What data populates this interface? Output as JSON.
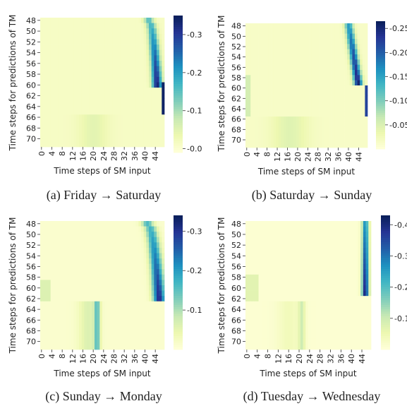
{
  "chart_data": [
    {
      "type": "heatmap",
      "caption": "(a) Friday → Saturday",
      "xlabel": "Time steps of SM input",
      "ylabel": "Time steps for predictions of TM",
      "x_ticks": [
        "0",
        "4",
        "8",
        "12",
        "16",
        "20",
        "24",
        "28",
        "32",
        "36",
        "40",
        "44"
      ],
      "y_ticks": [
        "48",
        "50",
        "52",
        "54",
        "56",
        "58",
        "60",
        "62",
        "64",
        "66",
        "68",
        "70"
      ],
      "x_range": [
        0,
        47
      ],
      "y_range": [
        48,
        71
      ],
      "colorbar": {
        "ticks": [
          "0.0",
          "0.1",
          "0.2",
          "0.3"
        ],
        "min": -0.01,
        "max": 0.35
      },
      "colormap": "YlGnBu"
    },
    {
      "type": "heatmap",
      "caption": "(b) Saturday → Sunday",
      "xlabel": "Time steps of SM input",
      "ylabel": "Time steps for predictions of TM",
      "x_ticks": [
        "0",
        "4",
        "8",
        "12",
        "16",
        "20",
        "24",
        "28",
        "32",
        "36",
        "40",
        "44"
      ],
      "y_ticks": [
        "48",
        "50",
        "52",
        "54",
        "56",
        "58",
        "60",
        "62",
        "64",
        "66",
        "68",
        "70"
      ],
      "x_range": [
        0,
        47
      ],
      "y_range": [
        48,
        71
      ],
      "colorbar": {
        "ticks": [
          "0.05",
          "0.10",
          "0.15",
          "0.20",
          "0.25"
        ],
        "min": 0.0,
        "max": 0.265
      },
      "colormap": "YlGnBu"
    },
    {
      "type": "heatmap",
      "caption": "(c) Sunday → Monday",
      "xlabel": "Time steps of SM input",
      "ylabel": "Time steps for predictions of TM",
      "x_ticks": [
        "0",
        "4",
        "8",
        "12",
        "16",
        "20",
        "24",
        "28",
        "32",
        "36",
        "40",
        "44"
      ],
      "y_ticks": [
        "48",
        "50",
        "52",
        "54",
        "56",
        "58",
        "60",
        "62",
        "64",
        "66",
        "68",
        "70"
      ],
      "x_range": [
        0,
        47
      ],
      "y_range": [
        48,
        71
      ],
      "colorbar": {
        "ticks": [
          "0.1",
          "0.2",
          "0.3"
        ],
        "min": 0.0,
        "max": 0.34
      },
      "colormap": "YlGnBu"
    },
    {
      "type": "heatmap",
      "caption": "(d) Tuesday → Wednesday",
      "xlabel": "Time steps of SM input",
      "ylabel": "Time steps for predictions of TM",
      "x_ticks": [
        "0",
        "4",
        "8",
        "12",
        "16",
        "20",
        "24",
        "28",
        "32",
        "36",
        "40",
        "44"
      ],
      "y_ticks": [
        "48",
        "50",
        "52",
        "54",
        "56",
        "58",
        "60",
        "62",
        "64",
        "66",
        "68",
        "70"
      ],
      "x_range": [
        0,
        47
      ],
      "y_range": [
        48,
        71
      ],
      "colorbar": {
        "ticks": [
          "0.1",
          "0.2",
          "0.3",
          "0.4"
        ],
        "min": 0.0,
        "max": 0.43
      },
      "colormap": "YlGnBu"
    }
  ]
}
